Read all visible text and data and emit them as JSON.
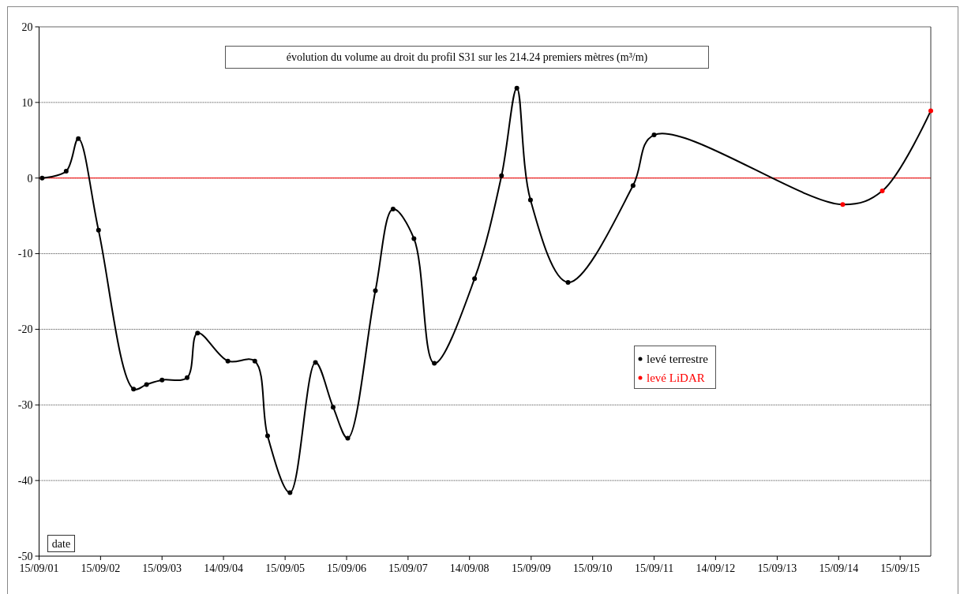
{
  "chart_data": {
    "type": "line",
    "title": "évolution du volume au droit du profil S31 sur les 214.24 premiers mètres (m³/m)",
    "xlabel": "date",
    "xlim": [
      "2001-09-15",
      "2016-03-15"
    ],
    "xticks": [
      {
        "value": "2001-09-15",
        "label": "15/09/01"
      },
      {
        "value": "2002-09-15",
        "label": "15/09/02"
      },
      {
        "value": "2003-09-15",
        "label": "15/09/03"
      },
      {
        "value": "2004-09-14",
        "label": "14/09/04"
      },
      {
        "value": "2005-09-15",
        "label": "15/09/05"
      },
      {
        "value": "2006-09-15",
        "label": "15/09/06"
      },
      {
        "value": "2007-09-15",
        "label": "15/09/07"
      },
      {
        "value": "2008-09-14",
        "label": "14/09/08"
      },
      {
        "value": "2009-09-15",
        "label": "15/09/09"
      },
      {
        "value": "2010-09-15",
        "label": "15/09/10"
      },
      {
        "value": "2011-09-15",
        "label": "15/09/11"
      },
      {
        "value": "2012-09-14",
        "label": "14/09/12"
      },
      {
        "value": "2013-09-15",
        "label": "15/09/13"
      },
      {
        "value": "2014-09-15",
        "label": "15/09/14"
      },
      {
        "value": "2015-09-15",
        "label": "15/09/15"
      }
    ],
    "ylim": [
      -50,
      20
    ],
    "yticks": [
      -50,
      -40,
      -30,
      -20,
      -10,
      0,
      10,
      20
    ],
    "grid": "y",
    "legend": "right",
    "ref_lines": [
      {
        "axis": "y",
        "value": 0,
        "color": "#ff0000"
      }
    ],
    "series": [
      {
        "color": "#000000",
        "marker": "none",
        "x": [
          "2001-10-03",
          "2002-02-23",
          "2002-05-06",
          "2002-09-03",
          "2003-03-30",
          "2003-06-15",
          "2003-09-15",
          "2004-02-11",
          "2004-04-13",
          "2004-10-10",
          "2005-03-19",
          "2005-06-03",
          "2005-10-14",
          "2006-03-14",
          "2006-06-27",
          "2006-09-22",
          "2007-03-05",
          "2007-06-18",
          "2007-10-20",
          "2008-02-18",
          "2008-10-14",
          "2009-03-23",
          "2009-06-22",
          "2009-09-11",
          "2010-04-22",
          "2011-05-13",
          "2011-09-15",
          "2014-10-09",
          "2015-06-01",
          "2016-03-15"
        ],
        "values": [
          0,
          0.9,
          5.2,
          -6.9,
          -27.9,
          -27.3,
          -26.7,
          -26.4,
          -20.5,
          -24.2,
          -24.2,
          -34.1,
          -41.6,
          -24.4,
          -30.3,
          -34.4,
          -14.9,
          -4.1,
          -8.0,
          -24.5,
          -13.3,
          0.3,
          11.9,
          -2.9,
          -13.8,
          -1.0,
          5.7,
          -3.5,
          -1.7,
          8.9
        ]
      },
      {
        "type": "scatter",
        "name": "levé terrestre",
        "color": "#000000",
        "marker": "circle",
        "x": [
          "2001-10-03",
          "2002-02-23",
          "2002-05-06",
          "2002-09-03",
          "2003-03-30",
          "2003-06-15",
          "2003-09-15",
          "2004-02-11",
          "2004-04-13",
          "2004-10-10",
          "2005-03-19",
          "2005-06-03",
          "2005-10-14",
          "2006-03-14",
          "2006-06-27",
          "2006-09-22",
          "2007-03-05",
          "2007-06-18",
          "2007-10-20",
          "2008-02-18",
          "2008-10-14",
          "2009-03-23",
          "2009-06-22",
          "2009-09-11",
          "2010-04-22",
          "2011-05-13",
          "2011-09-15"
        ],
        "values": [
          0,
          0.9,
          5.2,
          -6.9,
          -27.9,
          -27.3,
          -26.7,
          -26.4,
          -20.5,
          -24.2,
          -24.2,
          -34.1,
          -41.6,
          -24.4,
          -30.3,
          -34.4,
          -14.9,
          -4.1,
          -8.0,
          -24.5,
          -13.3,
          0.3,
          11.9,
          -2.9,
          -13.8,
          -1.0,
          5.7
        ]
      },
      {
        "type": "scatter",
        "name": "levé LiDAR",
        "color": "#ff0000",
        "marker": "circle",
        "x": [
          "2014-10-09",
          "2015-06-01",
          "2016-03-15"
        ],
        "values": [
          -3.5,
          -1.7,
          8.9
        ]
      }
    ]
  }
}
